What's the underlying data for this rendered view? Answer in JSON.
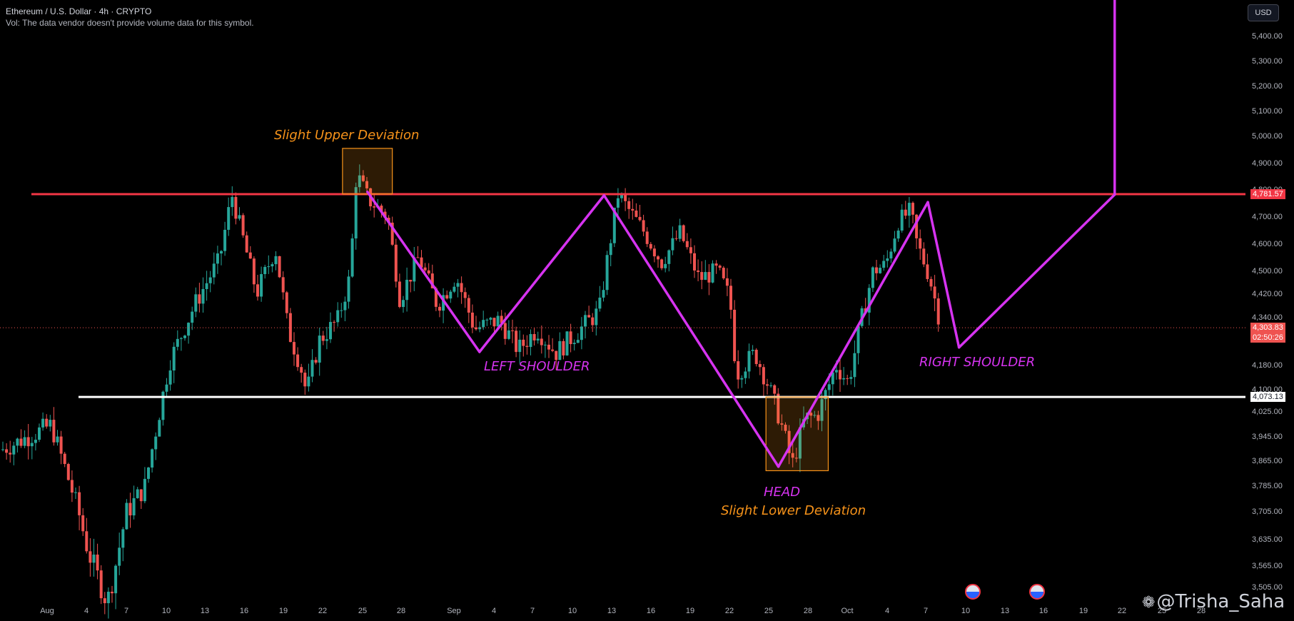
{
  "header": {
    "title": "Ethereum / U.S. Dollar · 4h · CRYPTO",
    "vol_note": "Vol: The data vendor doesn't provide volume data for this symbol."
  },
  "currency_button": "USD",
  "annotations": {
    "upper_deviation": "Slight Upper Deviation",
    "left_shoulder": "LEFT SHOULDER",
    "head": "HEAD",
    "lower_deviation": "Slight Lower Deviation",
    "right_shoulder": "RIGHT SHOULDER"
  },
  "watermark": "@Trisha_Saha",
  "price_tags": {
    "resistance": "4,781.57",
    "current_price": "4,303.83",
    "countdown": "02:50:26",
    "support": "4,073.13"
  },
  "colors": {
    "resistance_line": "#f23645",
    "support_line": "#ffffff",
    "pattern_line": "#d633f0",
    "deviation_box": "#f7931a",
    "candle_up": "#26a69a",
    "candle_down": "#ef5350"
  },
  "chart_data": {
    "type": "candlestick",
    "symbol": "Ethereum / U.S. Dollar",
    "interval": "4h",
    "y_axis_ticks": [
      5400,
      5300,
      5200,
      5100,
      5000,
      4900,
      4800,
      4700,
      4600,
      4500,
      4420,
      4340,
      4180,
      4100,
      4025,
      3945,
      3865,
      3785,
      3705,
      3635,
      3565,
      3505
    ],
    "y_tick_labels": [
      "5,400.00",
      "5,300.00",
      "5,200.00",
      "5,100.00",
      "5,000.00",
      "4,900.00",
      "4,800.00",
      "4,700.00",
      "4,600.00",
      "4,500.00",
      "4,420.00",
      "4,340.00",
      "4,180.00",
      "4,100.00",
      "4,025.00",
      "3,945.00",
      "3,865.00",
      "3,785.00",
      "3,705.00",
      "3,635.00",
      "3,565.00",
      "3,505.00"
    ],
    "x_tick_labels": [
      "Aug",
      "4",
      "7",
      "10",
      "13",
      "16",
      "19",
      "22",
      "25",
      "28",
      "Sep",
      "4",
      "7",
      "10",
      "13",
      "16",
      "19",
      "22",
      "25",
      "28",
      "Oct",
      "4",
      "7",
      "10",
      "13",
      "16",
      "19",
      "22",
      "25",
      "28"
    ],
    "resistance_level": 4781.57,
    "support_level": 4073.13,
    "current_price": 4303.83,
    "price_path": [
      [
        0,
        3900
      ],
      [
        4,
        3980
      ],
      [
        7,
        3600
      ],
      [
        8.5,
        3460
      ],
      [
        10,
        3700
      ],
      [
        11.5,
        3780
      ],
      [
        13.5,
        4190
      ],
      [
        15.5,
        4380
      ],
      [
        17.5,
        4540
      ],
      [
        18.5,
        4780
      ],
      [
        19.5,
        4600
      ],
      [
        20.5,
        4420
      ],
      [
        22,
        4580
      ],
      [
        23,
        4300
      ],
      [
        24,
        4180
      ],
      [
        24.5,
        4085
      ],
      [
        25.5,
        4260
      ],
      [
        27,
        4330
      ],
      [
        28,
        4480
      ],
      [
        28.5,
        4860
      ],
      [
        29.5,
        4760
      ],
      [
        31,
        4700
      ],
      [
        32,
        4400
      ],
      [
        33.5,
        4550
      ],
      [
        35,
        4380
      ],
      [
        36.5,
        4480
      ],
      [
        38,
        4300
      ],
      [
        40,
        4330
      ],
      [
        41.5,
        4230
      ],
      [
        43,
        4300
      ],
      [
        44.5,
        4220
      ],
      [
        46,
        4280
      ],
      [
        48,
        4360
      ],
      [
        49.5,
        4780
      ],
      [
        51.5,
        4650
      ],
      [
        53,
        4530
      ],
      [
        54.5,
        4640
      ],
      [
        56,
        4470
      ],
      [
        57.5,
        4500
      ],
      [
        58.5,
        4400
      ],
      [
        59,
        4150
      ],
      [
        60.5,
        4220
      ],
      [
        61.5,
        4120
      ],
      [
        62.5,
        4000
      ],
      [
        63.5,
        3850
      ],
      [
        64.5,
        4000
      ],
      [
        65.5,
        4010
      ],
      [
        66.5,
        4120
      ],
      [
        67,
        4180
      ],
      [
        68,
        4120
      ],
      [
        69,
        4320
      ],
      [
        70,
        4500
      ],
      [
        71,
        4520
      ],
      [
        72,
        4680
      ],
      [
        73,
        4720
      ],
      [
        73.5,
        4600
      ],
      [
        74.5,
        4480
      ],
      [
        75.5,
        4300
      ]
    ],
    "pattern_lines": [
      {
        "name": "left-shoulder-down",
        "points": [
          [
            29.5,
            4790
          ],
          [
            38.5,
            4223
          ]
        ]
      },
      {
        "name": "left-shoulder-up",
        "points": [
          [
            38.5,
            4223
          ],
          [
            48.5,
            4777
          ]
        ]
      },
      {
        "name": "head-down",
        "points": [
          [
            48.5,
            4777
          ],
          [
            62.5,
            3845
          ]
        ]
      },
      {
        "name": "head-up",
        "points": [
          [
            62.5,
            3845
          ],
          [
            74.5,
            4752
          ]
        ]
      },
      {
        "name": "right-shoulder-down",
        "points": [
          [
            74.5,
            4752
          ],
          [
            77,
            4238
          ]
        ]
      },
      {
        "name": "projection-up",
        "points": [
          [
            77,
            4238
          ],
          [
            89.5,
            4780
          ]
        ]
      },
      {
        "name": "projection-vertical",
        "points": [
          [
            89.5,
            4780
          ],
          [
            89.5,
            5600
          ]
        ]
      }
    ],
    "deviation_boxes": [
      {
        "name": "upper",
        "x": [
          27.5,
          31.5
        ],
        "y": [
          4782,
          4953
        ]
      },
      {
        "name": "lower",
        "x": [
          61.5,
          66.5
        ],
        "y": [
          3832,
          4073
        ]
      }
    ],
    "ylim": [
      3470,
      5490
    ],
    "xlim": [
      0,
      100
    ]
  }
}
